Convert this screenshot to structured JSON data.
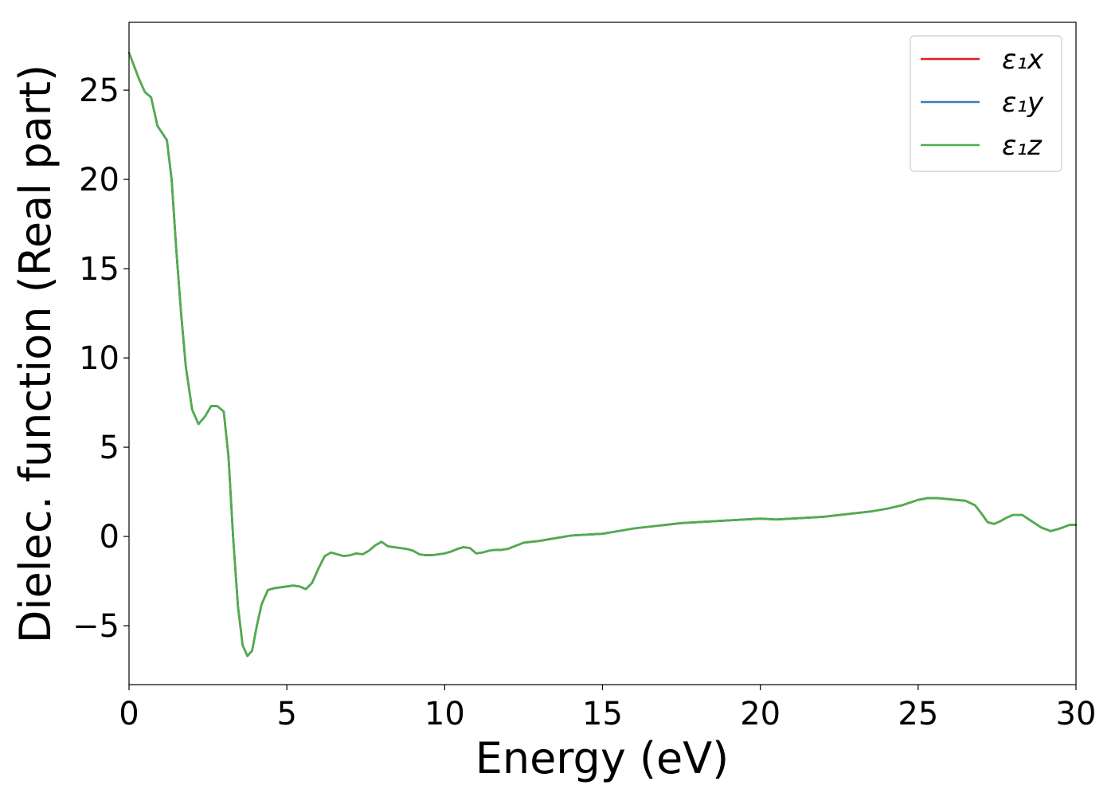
{
  "chart_data": {
    "type": "line",
    "xlabel": "Energy (eV)",
    "ylabel": "Dielec. function (Real part)",
    "xlim": [
      0,
      30
    ],
    "ylim": [
      -8.3,
      28.8
    ],
    "xticks": [
      0,
      5,
      10,
      15,
      20,
      25,
      30
    ],
    "xtick_labels": [
      "0",
      "5",
      "10",
      "15",
      "20",
      "25",
      "30"
    ],
    "yticks": [
      -5,
      0,
      5,
      10,
      15,
      20,
      25
    ],
    "ytick_labels": [
      "−5",
      "0",
      "5",
      "10",
      "15",
      "20",
      "25"
    ],
    "grid": false,
    "legend_position": "top-right",
    "x": [
      0,
      0.3,
      0.5,
      0.7,
      0.9,
      1.05,
      1.2,
      1.35,
      1.5,
      1.65,
      1.8,
      2.0,
      2.2,
      2.4,
      2.6,
      2.8,
      3.0,
      3.15,
      3.3,
      3.45,
      3.6,
      3.75,
      3.9,
      4.05,
      4.2,
      4.4,
      4.6,
      4.8,
      5.0,
      5.2,
      5.4,
      5.6,
      5.8,
      6.0,
      6.2,
      6.4,
      6.6,
      6.8,
      7.0,
      7.2,
      7.4,
      7.6,
      7.8,
      8.0,
      8.2,
      8.4,
      8.6,
      8.8,
      9.0,
      9.2,
      9.4,
      9.6,
      9.8,
      10.0,
      10.2,
      10.4,
      10.6,
      10.8,
      11.0,
      11.2,
      11.4,
      11.6,
      11.8,
      12.0,
      12.5,
      13.0,
      13.5,
      14.0,
      14.5,
      15.0,
      15.5,
      16.0,
      16.5,
      17.0,
      17.5,
      18.0,
      18.5,
      19.0,
      19.5,
      20.0,
      20.5,
      21.0,
      21.5,
      22.0,
      22.5,
      23.0,
      23.5,
      24.0,
      24.5,
      25.0,
      25.3,
      25.6,
      25.9,
      26.2,
      26.5,
      26.8,
      27.0,
      27.2,
      27.4,
      27.6,
      27.8,
      28.0,
      28.3,
      28.6,
      28.9,
      29.2,
      29.5,
      29.8,
      30.0
    ],
    "series": [
      {
        "name": "ε₁x",
        "color": "#e41a1c",
        "values": [
          27.1,
          25.7,
          24.9,
          24.6,
          23.0,
          22.6,
          22.2,
          20.0,
          16.0,
          12.5,
          9.5,
          7.1,
          6.3,
          6.7,
          7.3,
          7.3,
          7.0,
          4.5,
          -0.1,
          -3.9,
          -6.1,
          -6.7,
          -6.4,
          -5.0,
          -3.8,
          -3.0,
          -2.9,
          -2.85,
          -2.8,
          -2.75,
          -2.8,
          -2.95,
          -2.6,
          -1.8,
          -1.1,
          -0.9,
          -1.0,
          -1.1,
          -1.05,
          -0.95,
          -1.0,
          -0.8,
          -0.5,
          -0.3,
          -0.55,
          -0.6,
          -0.65,
          -0.7,
          -0.8,
          -1.0,
          -1.05,
          -1.05,
          -1.0,
          -0.95,
          -0.85,
          -0.7,
          -0.6,
          -0.65,
          -0.95,
          -0.9,
          -0.8,
          -0.75,
          -0.75,
          -0.7,
          -0.35,
          -0.25,
          -0.1,
          0.05,
          0.1,
          0.15,
          0.3,
          0.45,
          0.55,
          0.65,
          0.75,
          0.8,
          0.85,
          0.9,
          0.95,
          1.0,
          0.95,
          1.0,
          1.05,
          1.1,
          1.2,
          1.3,
          1.4,
          1.55,
          1.75,
          2.05,
          2.15,
          2.15,
          2.1,
          2.05,
          2.0,
          1.75,
          1.3,
          0.8,
          0.7,
          0.85,
          1.05,
          1.2,
          1.2,
          0.85,
          0.5,
          0.3,
          0.45,
          0.65,
          0.65
        ]
      },
      {
        "name": "ε₁y",
        "color": "#377eb8",
        "values": [
          27.1,
          25.7,
          24.9,
          24.6,
          23.0,
          22.6,
          22.2,
          20.0,
          16.0,
          12.5,
          9.5,
          7.1,
          6.3,
          6.7,
          7.3,
          7.3,
          7.0,
          4.5,
          -0.1,
          -3.9,
          -6.1,
          -6.7,
          -6.4,
          -5.0,
          -3.8,
          -3.0,
          -2.9,
          -2.85,
          -2.8,
          -2.75,
          -2.8,
          -2.95,
          -2.6,
          -1.8,
          -1.1,
          -0.9,
          -1.0,
          -1.1,
          -1.05,
          -0.95,
          -1.0,
          -0.8,
          -0.5,
          -0.3,
          -0.55,
          -0.6,
          -0.65,
          -0.7,
          -0.8,
          -1.0,
          -1.05,
          -1.05,
          -1.0,
          -0.95,
          -0.85,
          -0.7,
          -0.6,
          -0.65,
          -0.95,
          -0.9,
          -0.8,
          -0.75,
          -0.75,
          -0.7,
          -0.35,
          -0.25,
          -0.1,
          0.05,
          0.1,
          0.15,
          0.3,
          0.45,
          0.55,
          0.65,
          0.75,
          0.8,
          0.85,
          0.9,
          0.95,
          1.0,
          0.95,
          1.0,
          1.05,
          1.1,
          1.2,
          1.3,
          1.4,
          1.55,
          1.75,
          2.05,
          2.15,
          2.15,
          2.1,
          2.05,
          2.0,
          1.75,
          1.3,
          0.8,
          0.7,
          0.85,
          1.05,
          1.2,
          1.2,
          0.85,
          0.5,
          0.3,
          0.45,
          0.65,
          0.65
        ]
      },
      {
        "name": "ε₁z",
        "color": "#4daf4a",
        "values": [
          27.1,
          25.7,
          24.9,
          24.6,
          23.0,
          22.6,
          22.2,
          20.0,
          16.0,
          12.5,
          9.5,
          7.1,
          6.3,
          6.7,
          7.3,
          7.3,
          7.0,
          4.5,
          -0.1,
          -3.9,
          -6.1,
          -6.7,
          -6.4,
          -5.0,
          -3.8,
          -3.0,
          -2.9,
          -2.85,
          -2.8,
          -2.75,
          -2.8,
          -2.95,
          -2.6,
          -1.8,
          -1.1,
          -0.9,
          -1.0,
          -1.1,
          -1.05,
          -0.95,
          -1.0,
          -0.8,
          -0.5,
          -0.3,
          -0.55,
          -0.6,
          -0.65,
          -0.7,
          -0.8,
          -1.0,
          -1.05,
          -1.05,
          -1.0,
          -0.95,
          -0.85,
          -0.7,
          -0.6,
          -0.65,
          -0.95,
          -0.9,
          -0.8,
          -0.75,
          -0.75,
          -0.7,
          -0.35,
          -0.25,
          -0.1,
          0.05,
          0.1,
          0.15,
          0.3,
          0.45,
          0.55,
          0.65,
          0.75,
          0.8,
          0.85,
          0.9,
          0.95,
          1.0,
          0.95,
          1.0,
          1.05,
          1.1,
          1.2,
          1.3,
          1.4,
          1.55,
          1.75,
          2.05,
          2.15,
          2.15,
          2.1,
          2.05,
          2.0,
          1.75,
          1.3,
          0.8,
          0.7,
          0.85,
          1.05,
          1.2,
          1.2,
          0.85,
          0.5,
          0.3,
          0.45,
          0.65,
          0.65
        ]
      }
    ]
  }
}
